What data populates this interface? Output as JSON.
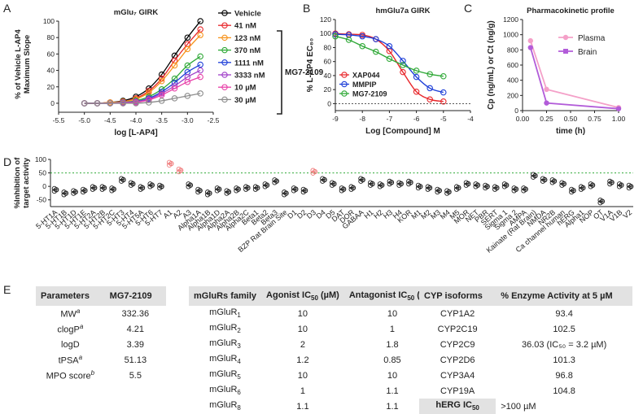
{
  "panels": {
    "A": "A",
    "B": "B",
    "C": "C",
    "D": "D",
    "E": "E"
  },
  "chart_data": [
    {
      "panel": "A",
      "type": "line",
      "title": "mGlu₇ GIRK",
      "xlabel": "log [L-AP4]",
      "ylabel": "% of Vehicle L-AP4 Maximum Slope",
      "xlim": [
        -5.5,
        -2.5
      ],
      "ylim": [
        -5,
        100
      ],
      "xticks": [
        "-5.5",
        "-5.0",
        "-4.5",
        "-4.0",
        "-3.5",
        "-3.0",
        "-2.5"
      ],
      "yticks": [
        "0",
        "20",
        "40",
        "60",
        "80",
        "100"
      ],
      "x": [
        -5.0,
        -4.75,
        -4.5,
        -4.25,
        -4.0,
        -3.75,
        -3.5,
        -3.25,
        -3.0,
        -2.75
      ],
      "bracket_label": "MG7-2109",
      "series": [
        {
          "name": "Vehicle",
          "color": "#000000",
          "values": [
            0,
            0,
            1,
            3,
            8,
            18,
            35,
            58,
            80,
            100
          ]
        },
        {
          "name": "41 nM",
          "color": "#e8262a",
          "values": [
            0,
            0,
            1,
            2,
            6,
            15,
            30,
            52,
            72,
            90
          ]
        },
        {
          "name": "123 nM",
          "color": "#f7941d",
          "values": [
            0,
            0,
            1,
            2,
            5,
            13,
            27,
            46,
            66,
            83
          ]
        },
        {
          "name": "370 nM",
          "color": "#2ea836",
          "values": [
            0,
            0,
            0,
            1,
            3,
            8,
            17,
            30,
            46,
            57
          ]
        },
        {
          "name": "1111 nM",
          "color": "#1e3fd8",
          "values": [
            0,
            0,
            0,
            1,
            2,
            6,
            14,
            25,
            38,
            47
          ]
        },
        {
          "name": "3333 nM",
          "color": "#a03fc8",
          "values": [
            0,
            0,
            0,
            1,
            2,
            5,
            12,
            21,
            32,
            40
          ]
        },
        {
          "name": "10 µM",
          "color": "#e83fa8",
          "values": [
            0,
            0,
            0,
            0,
            1,
            4,
            10,
            18,
            26,
            32
          ]
        },
        {
          "name": "30 µM",
          "color": "#8c8c8c",
          "values": [
            0,
            0,
            0,
            0,
            0,
            1,
            3,
            6,
            9,
            12
          ]
        }
      ]
    },
    {
      "panel": "B",
      "type": "line",
      "title": "hmGlu7a GIRK",
      "xlabel": "Log [Compound] M",
      "ylabel": "% L-AP4 EC₈₀",
      "xlim": [
        -9,
        -4
      ],
      "ylim": [
        -10,
        120
      ],
      "xticks": [
        "-9",
        "-8",
        "-7",
        "-6",
        "-5",
        "-4"
      ],
      "yticks": [
        "0",
        "20",
        "40",
        "60",
        "80",
        "100",
        "120"
      ],
      "x": [
        -9.0,
        -8.5,
        -8.0,
        -7.5,
        -7.0,
        -6.5,
        -6.0,
        -5.5,
        -5.0
      ],
      "series": [
        {
          "name": "XAP044",
          "color": "#e8262a",
          "values": [
            100,
            99,
            98,
            92,
            75,
            45,
            17,
            6,
            3
          ]
        },
        {
          "name": "MMPIP",
          "color": "#1e3fd8",
          "values": [
            99,
            98,
            96,
            92,
            82,
            61,
            38,
            22,
            16
          ]
        },
        {
          "name": "MG7-2109",
          "color": "#2ea836",
          "values": [
            96,
            91,
            82,
            74,
            64,
            55,
            47,
            42,
            39
          ]
        }
      ]
    },
    {
      "panel": "C",
      "type": "line",
      "title": "Pharmacokinetic profile",
      "xlabel": "time (h)",
      "ylabel": "Cp (ng/mL) or Ct (ng/g)",
      "xlim": [
        0,
        1
      ],
      "ylim": [
        0,
        1200
      ],
      "xticks": [
        "0.00",
        "0.25",
        "0.50",
        "0.75",
        "1.00"
      ],
      "yticks": [
        "0",
        "200",
        "400",
        "600",
        "800",
        "1000",
        "1200"
      ],
      "x": [
        0.083,
        0.25,
        1.0
      ],
      "series": [
        {
          "name": "Plasma",
          "color": "#f4a0c8",
          "values": [
            920,
            280,
            40
          ]
        },
        {
          "name": "Brain",
          "color": "#b25cd9",
          "values": [
            830,
            100,
            25
          ]
        }
      ]
    },
    {
      "panel": "D",
      "type": "scatter",
      "ylabel": "%Inhibition of target activity",
      "ylim": [
        -75,
        100
      ],
      "yticks": [
        "-50",
        "0",
        "50",
        "100"
      ],
      "threshold": 50,
      "categories": [
        "5-HT1A",
        "5-HT1B",
        "5-HT1D",
        "5-HT1E",
        "5-HT2A",
        "5-HT2B",
        "5-HT2C",
        "5-HT3",
        "5-HT4",
        "5-HT5A",
        "5-HT6",
        "5-HT7",
        "A1",
        "A2",
        "A3",
        "Alpha1A",
        "Alpha1B",
        "Alpha1D",
        "Alpha2A",
        "Alpha2B",
        "Alpha2C",
        "Beta1",
        "Beta2",
        "Beta3",
        "BZP Rat Brain Site",
        "D1",
        "D2",
        "D3",
        "D4",
        "D5",
        "DAT",
        "DOR",
        "GABAA",
        "H1",
        "H2",
        "H3",
        "H4",
        "KOR",
        "M1",
        "M2",
        "M3",
        "M4",
        "M5",
        "MOR",
        "NET",
        "PBR",
        "SERT",
        "Sigma 1",
        "Sigma 2",
        "AMPA",
        "Kainate (Rat Brain)",
        "NMDA",
        "NR2B",
        "Ca channel human",
        "hERG",
        "Alpha1",
        "NOP",
        "OT",
        "V1A",
        "V1B",
        "V2"
      ],
      "values": [
        -12,
        -25,
        -20,
        -15,
        -5,
        -5,
        -10,
        25,
        10,
        -5,
        5,
        0,
        85,
        60,
        5,
        -15,
        -25,
        -10,
        -20,
        -10,
        -5,
        -5,
        5,
        20,
        -25,
        -10,
        -15,
        55,
        25,
        10,
        -10,
        -5,
        25,
        10,
        5,
        15,
        10,
        15,
        0,
        -5,
        -15,
        -20,
        -5,
        10,
        5,
        0,
        -5,
        5,
        -10,
        -10,
        40,
        25,
        20,
        10,
        -15,
        -5,
        5,
        -55,
        15,
        5,
        0
      ],
      "labels": [
        "5-HT1A",
        "5-HT1B",
        "5-HT1D",
        "5-HT1E",
        "5-HT2A",
        "5-HT2B",
        "5-HT2C",
        "5-HT3",
        "5-HT4",
        "5-HT5A",
        "5-HT6",
        "5-HT7",
        "A1",
        "A2",
        "A3",
        "Alpha1A",
        "Alpha1B",
        "Alpha1D",
        "Alpha2A",
        "Alpha2B",
        "Alpha2C",
        "Beta1",
        "Beta2",
        "Beta3",
        "BZP Rat Brain Site",
        "D1",
        "D2",
        "D3",
        "D4",
        "D5",
        "DAT",
        "DOR",
        "GABAA",
        "H1",
        "H2",
        "H3",
        "H4",
        "KOR",
        "M1",
        "M2",
        "M3",
        "M4",
        "M5",
        "MOR",
        "NET",
        "PBR",
        "SERT",
        "Sigma 1",
        "Sigma 2",
        "AMPA",
        "Kainate (Rat Brain)",
        "NMDA",
        "NR2B",
        "Ca channel human",
        "hERG",
        "Alpha1",
        "NOP",
        "OT",
        "V1A",
        "V1B",
        "V2"
      ]
    }
  ],
  "tables": {
    "params": {
      "headers": [
        "Parameters",
        "MG7-2109"
      ],
      "rows": [
        {
          "label": "MW",
          "sup": "a",
          "value": "332.36"
        },
        {
          "label": "clogP",
          "sup": "a",
          "value": "4.21"
        },
        {
          "label": "logD",
          "sup": "",
          "value": "3.39"
        },
        {
          "label": "tPSA",
          "sup": "a",
          "value": "51.13"
        },
        {
          "label": "MPO score",
          "sup": "b",
          "value": "5.5"
        }
      ]
    },
    "mglu": {
      "headers": [
        "mGluRs family",
        "Agonist IC",
        "50",
        " (µM)",
        "Antagonist IC",
        "50",
        " (µM)"
      ],
      "rows": [
        {
          "name": "mGluR",
          "sub": "1",
          "agonist": "10",
          "antagonist": "10"
        },
        {
          "name": "mGluR",
          "sub": "2",
          "agonist": "10",
          "antagonist": "1"
        },
        {
          "name": "mGluR",
          "sub": "3",
          "agonist": "2",
          "antagonist": "1.8"
        },
        {
          "name": "mGluR",
          "sub": "4",
          "agonist": "1.2",
          "antagonist": "0.85"
        },
        {
          "name": "mGluR",
          "sub": "5",
          "agonist": "10",
          "antagonist": "10"
        },
        {
          "name": "mGluR",
          "sub": "6",
          "agonist": "1",
          "antagonist": "1.1"
        },
        {
          "name": "mGluR",
          "sub": "8",
          "agonist": "1.1",
          "antagonist": "1.1"
        }
      ]
    },
    "cyp": {
      "headers": [
        "CYP isoforms",
        "% Enzyme Activity at 5 µM"
      ],
      "rows": [
        {
          "name": "CYP1A2",
          "value": "93.4"
        },
        {
          "name": "CYP2C19",
          "value": "102.5"
        },
        {
          "name": "CYP2C9",
          "value": "36.03 (IC₅₀ = 3.2 µM)"
        },
        {
          "name": "CYP2D6",
          "value": "101.3"
        },
        {
          "name": "CYP3A4",
          "value": "96.8"
        },
        {
          "name": "CYP19A",
          "value": "104.8"
        }
      ],
      "herg_label": "hERG IC",
      "herg_sub": "50",
      "herg_value": ">100 µM"
    }
  }
}
